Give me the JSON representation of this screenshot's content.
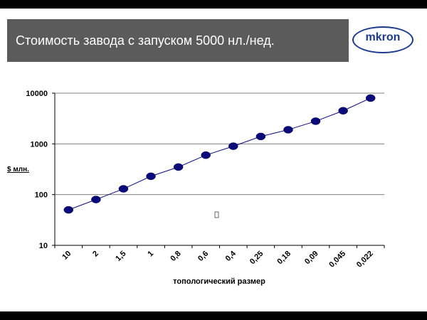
{
  "slide": {
    "title": "Стоимость завода с запуском 5000 нл./нед.",
    "logo_text": "mkron"
  },
  "chart_data": {
    "type": "line",
    "title": "",
    "xlabel": "топологический размер",
    "ylabel": "$ млн.",
    "yscale": "log",
    "ylim": [
      10,
      10000
    ],
    "yticks": [
      "10000",
      "1000",
      "100",
      "10"
    ],
    "categories": [
      "10",
      "2",
      "1,5",
      "1",
      "0,8",
      "0,6",
      "0,4",
      "0,25",
      "0,18",
      "0,09",
      "0,045",
      "0,022"
    ],
    "point_count": 12,
    "x_positions": [
      0.5,
      1.5,
      2.5,
      3.5,
      4.5,
      5.5,
      6.5,
      7.5,
      8.5,
      9.5,
      10.5,
      11.5
    ],
    "values": [
      50,
      80,
      130,
      230,
      350,
      600,
      900,
      1400,
      1900,
      2800,
      4500,
      8000
    ],
    "grid": true,
    "legend": "none",
    "colors": {
      "marker": "#0a0a7a",
      "line": "#0a0a7a",
      "grid": "#808080",
      "axis": "#000000"
    }
  }
}
